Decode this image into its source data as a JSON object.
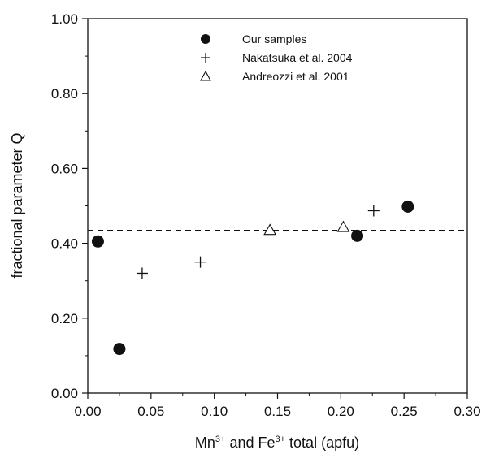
{
  "chart_data": {
    "type": "scatter",
    "xlabel": {
      "pre": "Mn",
      "sup1": "3+",
      "mid": " and Fe",
      "sup2": "3+",
      "post": " total (apfu)"
    },
    "ylabel": "fractional parameter Q",
    "xlim": [
      0.0,
      0.3
    ],
    "ylim": [
      0.0,
      1.0
    ],
    "xticks": [
      "0.00",
      "0.05",
      "0.10",
      "0.15",
      "0.20",
      "0.25",
      "0.30"
    ],
    "yticks": [
      "0.00",
      "0.20",
      "0.40",
      "0.60",
      "0.80",
      "1.00"
    ],
    "xtick_values": [
      0.0,
      0.05,
      0.1,
      0.15,
      0.2,
      0.25,
      0.3
    ],
    "ytick_values": [
      0.0,
      0.2,
      0.4,
      0.6,
      0.8,
      1.0
    ],
    "grid": false,
    "legend_position": "top-center",
    "reference_line": {
      "y": 0.435,
      "style": "dashed"
    },
    "series": [
      {
        "name": "Our samples",
        "marker": "filled-circle",
        "points": [
          [
            0.008,
            0.405
          ],
          [
            0.025,
            0.118
          ],
          [
            0.213,
            0.42
          ],
          [
            0.253,
            0.498
          ]
        ]
      },
      {
        "name": "Nakatsuka et al. 2004",
        "marker": "plus",
        "points": [
          [
            0.043,
            0.32
          ],
          [
            0.089,
            0.35
          ],
          [
            0.226,
            0.487
          ]
        ]
      },
      {
        "name": "Andreozzi et al. 2001",
        "marker": "open-triangle",
        "points": [
          [
            0.144,
            0.435
          ],
          [
            0.202,
            0.443
          ]
        ]
      }
    ]
  }
}
